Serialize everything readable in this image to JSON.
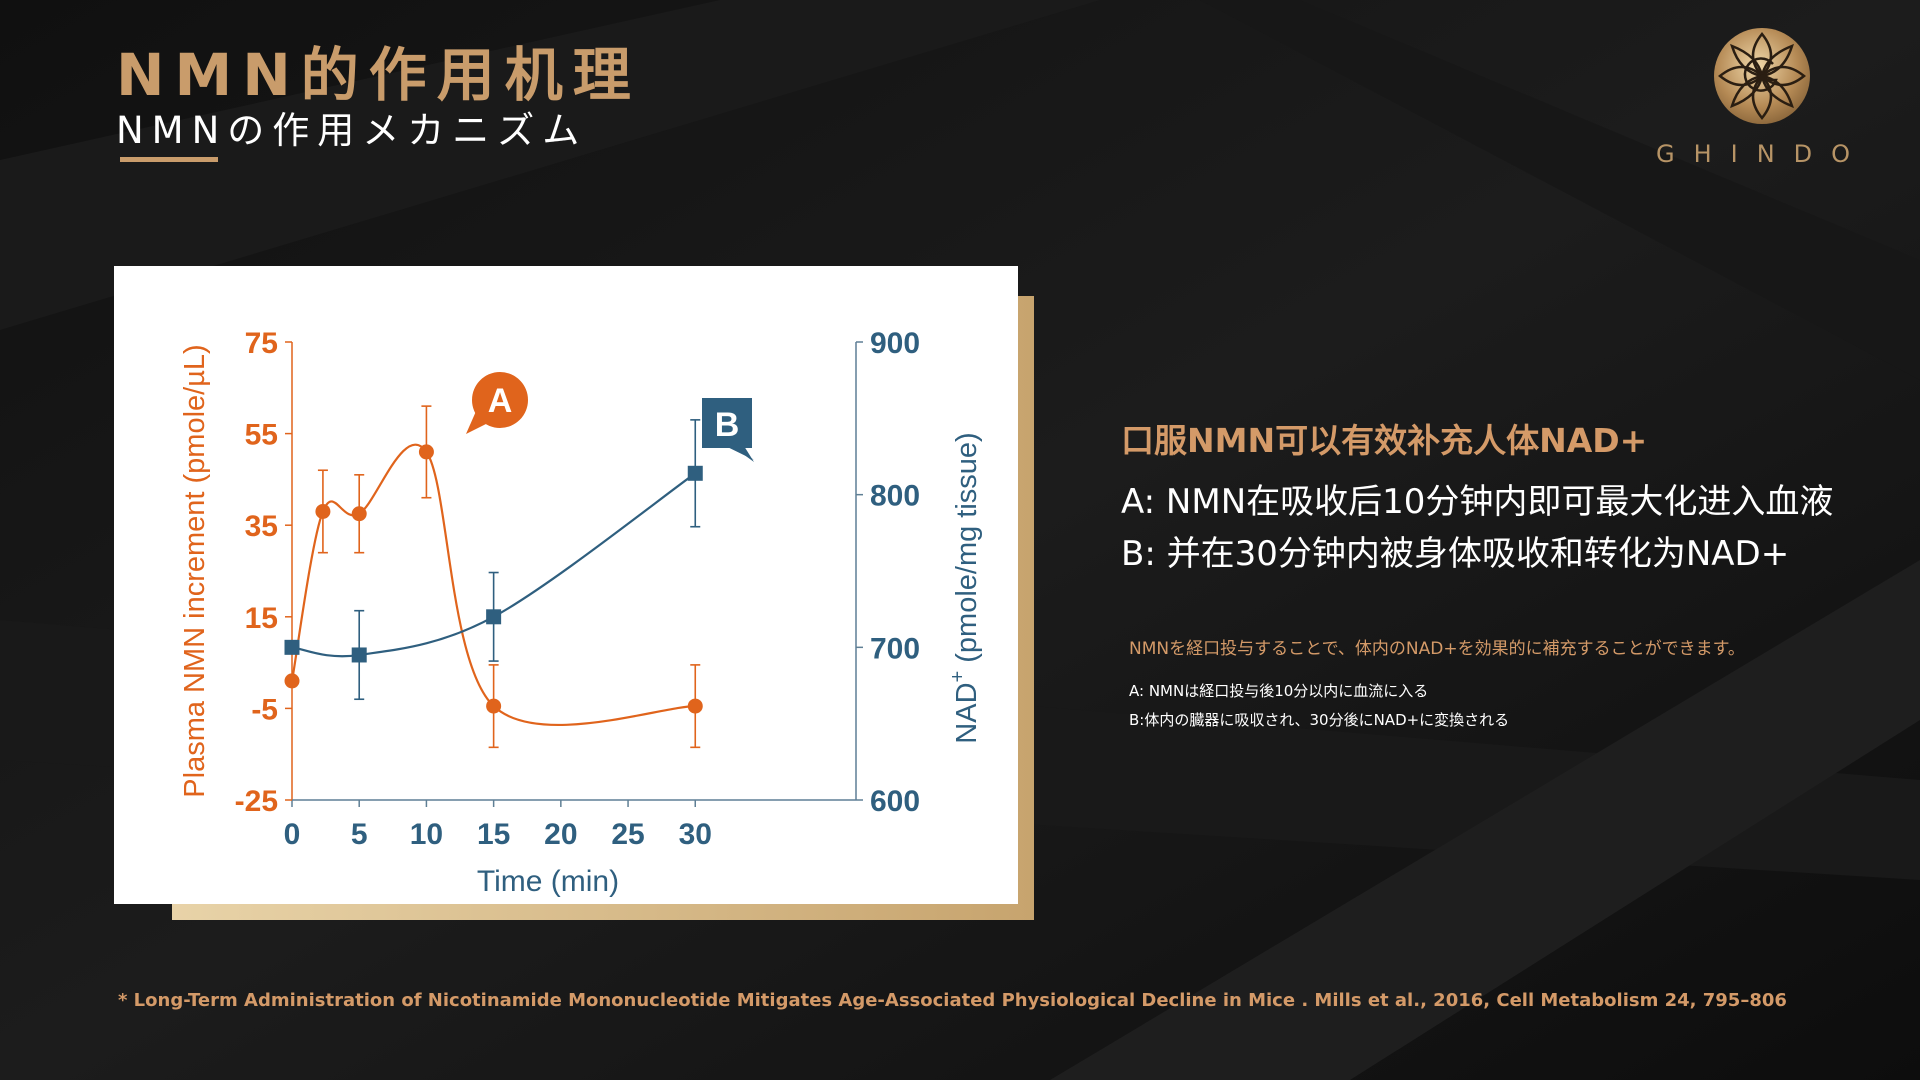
{
  "header": {
    "title_zh": "NMN的作用机理",
    "title_jp": "NMNの作用メカニズム"
  },
  "logo": {
    "wordmark": "GHINDO"
  },
  "side": {
    "heading": "口服NMN可以有效补充人体NAD+",
    "line_a": "A: NMN在吸收后10分钟内即可最大化进入血液",
    "line_b": "B: 并在30分钟内被身体吸收和转化为NAD+",
    "jp_main": "NMNを経口投与することで、体内のNAD+を効果的に補充することができます。",
    "jp_a": "A: NMNは経口投与後10分以内に血流に入る",
    "jp_b": "B:体内の臓器に吸収され、30分後にNAD+に変換される"
  },
  "footnote": "* Long-Term Administration of Nicotinamide Mononucleotide Mitigates Age-Associated Physiological Decline in Mice . Mills et al., 2016, Cell Metabolism 24, 795–806",
  "colors": {
    "gold": "#c99c6b",
    "accent_orange": "#e0641c",
    "accent_blue": "#2f5f7f",
    "background": "#141414"
  },
  "chart_data": {
    "type": "line",
    "xlabel": "Time (min)",
    "ylabel_left": "Plasma NMN increment  (pmole/µL)",
    "ylabel_right_main": "NAD",
    "ylabel_right_sup": "+",
    "ylabel_right_rest": " (pmole/mg tissue)",
    "x_ticks": [
      "0",
      "5",
      "10",
      "15",
      "20",
      "25",
      "30"
    ],
    "xlim": [
      0,
      30
    ],
    "y_left_ticks": [
      "75",
      "55",
      "35",
      "15",
      "-5",
      "-25"
    ],
    "ylim_left": [
      -25,
      75
    ],
    "y_right_ticks": [
      "900",
      "800",
      "700",
      "600"
    ],
    "ylim_right": [
      600,
      900
    ],
    "grid": false,
    "series": [
      {
        "axis": "left",
        "marker": "circle",
        "color": "#e0641c",
        "x": [
          0,
          2.3,
          5,
          10,
          15,
          30
        ],
        "y": [
          1,
          38,
          37.5,
          51,
          -4.5,
          -4.5
        ],
        "err": [
          0,
          9,
          8.5,
          10,
          9,
          9
        ]
      },
      {
        "axis": "right",
        "marker": "square",
        "color": "#2f5f7f",
        "x": [
          0,
          5,
          15,
          30
        ],
        "y": [
          700,
          695,
          720,
          814
        ],
        "err": [
          0,
          29,
          29,
          35
        ]
      }
    ],
    "annotations": [
      {
        "label": "A",
        "target_series": 0,
        "target_index": 3,
        "color": "#e0641c"
      },
      {
        "label": "B",
        "target_series": 1,
        "target_index": 3,
        "color": "#2f5f7f"
      }
    ]
  }
}
